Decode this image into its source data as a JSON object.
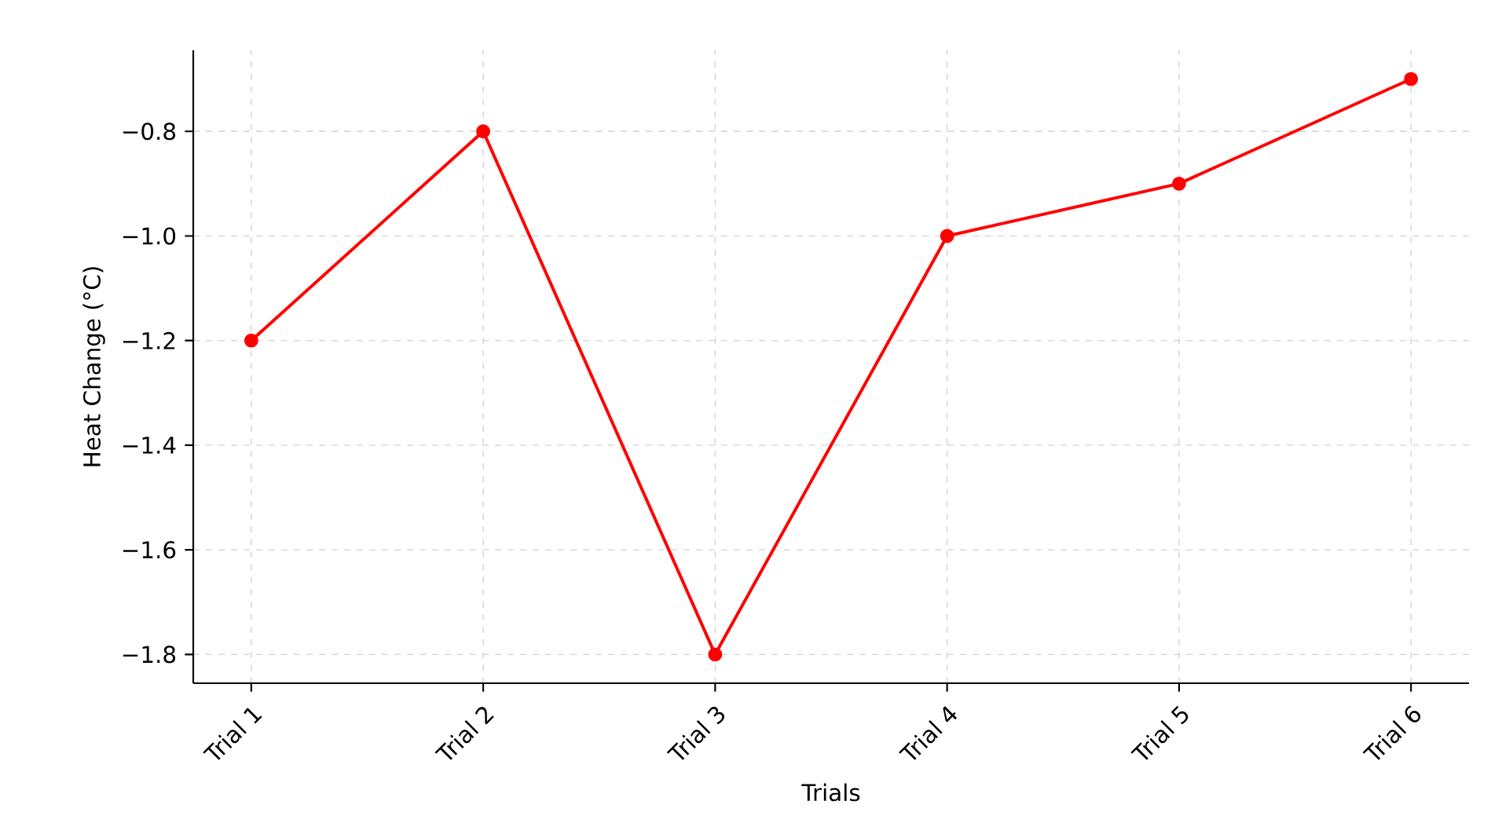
{
  "chart_data": {
    "type": "line",
    "xlabel": "Trials",
    "ylabel": "Heat Change (°C)",
    "categories": [
      "Trial 1",
      "Trial 2",
      "Trial 3",
      "Trial 4",
      "Trial 5",
      "Trial 6"
    ],
    "series": [
      {
        "color": "#ff0000",
        "values": [
          -1.2,
          -0.8,
          -1.8,
          -1.0,
          -0.9,
          -0.7
        ]
      }
    ],
    "ylim": [
      -1.855,
      -0.645
    ],
    "yticks": [
      {
        "value": -1.8,
        "label": "−1.8"
      },
      {
        "value": -1.6,
        "label": "−1.6"
      },
      {
        "value": -1.4,
        "label": "−1.4"
      },
      {
        "value": -1.2,
        "label": "−1.2"
      },
      {
        "value": -1.0,
        "label": "−1.0"
      },
      {
        "value": -0.8,
        "label": "−0.8"
      }
    ],
    "grid": true,
    "marker": "circle",
    "line_style": "solid"
  }
}
